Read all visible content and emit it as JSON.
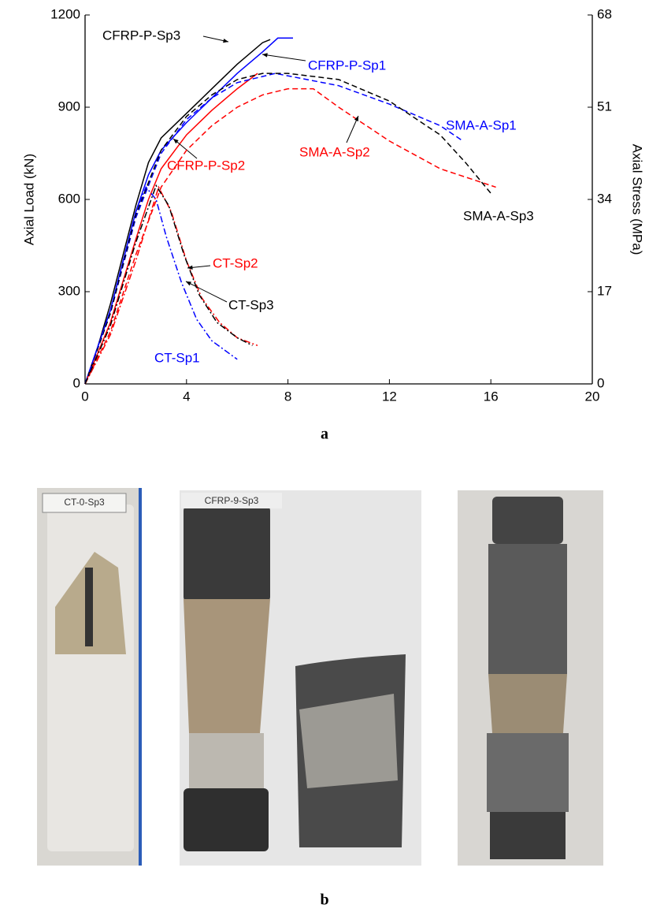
{
  "chart_data": {
    "type": "line",
    "ylabel": "Axial Load (kN)",
    "y2label": "Axial Stress (MPa)",
    "xlim": [
      0,
      20
    ],
    "xticks": [
      0,
      4,
      8,
      12,
      16,
      20
    ],
    "ylim": [
      0,
      1200
    ],
    "yticks": [
      0,
      300,
      600,
      900,
      1200
    ],
    "y2lim": [
      0,
      68
    ],
    "y2ticks": [
      0,
      17,
      34,
      51,
      68
    ],
    "series": [
      {
        "name": "CFRP-P-Sp3",
        "color": "#000000",
        "dash": "solid",
        "x": [
          0,
          0.5,
          1,
          1.5,
          2,
          2.5,
          3,
          4,
          5,
          6,
          7,
          7.3
        ],
        "values": [
          0,
          120,
          260,
          420,
          580,
          720,
          800,
          880,
          960,
          1040,
          1110,
          1120
        ]
      },
      {
        "name": "CFRP-P-Sp1",
        "color": "#0000ff",
        "dash": "solid",
        "x": [
          0,
          1,
          2,
          2.5,
          3,
          4,
          5,
          6,
          7,
          7.6,
          8.2
        ],
        "values": [
          0,
          240,
          560,
          680,
          760,
          850,
          930,
          1010,
          1080,
          1125,
          1125
        ]
      },
      {
        "name": "CFRP-P-Sp2",
        "color": "#ff0000",
        "dash": "solid",
        "x": [
          0,
          1,
          2,
          2.5,
          3,
          4,
          5,
          6,
          6.8
        ],
        "values": [
          0,
          200,
          470,
          600,
          700,
          810,
          890,
          960,
          1010
        ]
      },
      {
        "name": "SMA-A-Sp1",
        "color": "#0000ff",
        "dash": "dashed",
        "x": [
          0,
          1,
          2,
          3,
          4,
          5,
          6,
          7.5,
          10,
          12,
          14,
          14.9
        ],
        "values": [
          0,
          230,
          540,
          750,
          860,
          930,
          980,
          1010,
          970,
          910,
          840,
          790
        ]
      },
      {
        "name": "SMA-A-Sp2",
        "color": "#ff0000",
        "dash": "dashed",
        "x": [
          0,
          1,
          2,
          3,
          4,
          5,
          6,
          7,
          8,
          9,
          10,
          12,
          14,
          16.2
        ],
        "values": [
          0,
          170,
          420,
          640,
          760,
          840,
          900,
          940,
          960,
          960,
          900,
          790,
          700,
          640
        ]
      },
      {
        "name": "SMA-A-Sp3",
        "color": "#000000",
        "dash": "dashed",
        "x": [
          0,
          1,
          2,
          3,
          4,
          5,
          6,
          7,
          8,
          10,
          12,
          14,
          15,
          16
        ],
        "values": [
          0,
          230,
          550,
          760,
          870,
          940,
          990,
          1010,
          1010,
          990,
          920,
          810,
          720,
          620
        ]
      },
      {
        "name": "CT-Sp1",
        "color": "#0000ff",
        "dash": "dashdot",
        "x": [
          0,
          1,
          2,
          2.4,
          2.8,
          3.2,
          3.8,
          4.4,
          5,
          6
        ],
        "values": [
          0,
          240,
          560,
          640,
          600,
          480,
          330,
          210,
          140,
          80
        ]
      },
      {
        "name": "CT-Sp2",
        "color": "#ff0000",
        "dash": "dashdot",
        "x": [
          0,
          1,
          2,
          2.9,
          3.4,
          4,
          4.6,
          5.3,
          6,
          6.8
        ],
        "values": [
          0,
          160,
          400,
          640,
          560,
          400,
          280,
          200,
          150,
          125
        ]
      },
      {
        "name": "CT-Sp3",
        "color": "#000000",
        "dash": "dashdot",
        "x": [
          0,
          1,
          2,
          2.8,
          3.3,
          3.9,
          4.5,
          5.2,
          6,
          6.6
        ],
        "values": [
          0,
          190,
          460,
          645,
          580,
          420,
          290,
          200,
          150,
          125
        ]
      }
    ]
  },
  "caption_a": "a",
  "caption_b": "b",
  "photo_labels": [
    "CT-0-Sp3",
    "CFRP-9-Sp3"
  ]
}
